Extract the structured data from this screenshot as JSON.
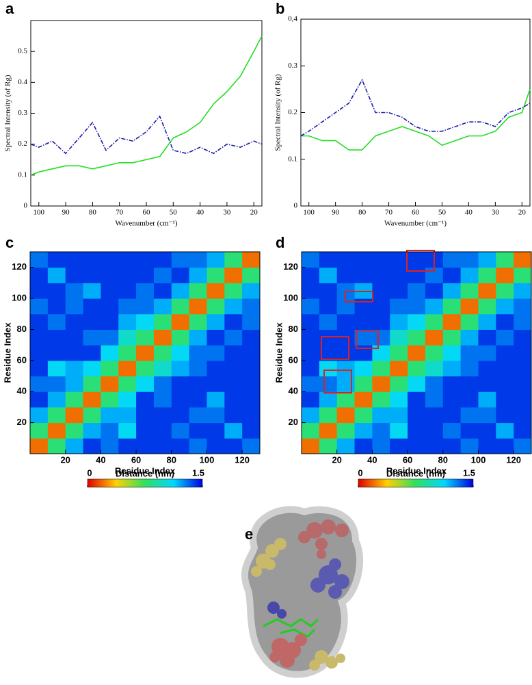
{
  "chart_data": [
    {
      "type": "line",
      "panel": "a",
      "xlabel": "Wavenumber (cm⁻¹)",
      "ylabel": "Spectral Intensity (of Rg)",
      "x": [
        103,
        100,
        95,
        90,
        85,
        80,
        75,
        70,
        65,
        60,
        55,
        50,
        45,
        40,
        35,
        30,
        25,
        20,
        17
      ],
      "xlim": [
        103,
        17
      ],
      "xticks": [
        100,
        90,
        80,
        70,
        60,
        50,
        40,
        30,
        20
      ],
      "ylim": [
        0,
        0.6
      ],
      "yticks": [
        0,
        0.1,
        0.2,
        0.3,
        0.4,
        0.5
      ],
      "series": [
        {
          "color": "#22dd22",
          "style": "solid",
          "values": [
            0.1,
            0.11,
            0.12,
            0.13,
            0.13,
            0.12,
            0.13,
            0.14,
            0.14,
            0.15,
            0.16,
            0.22,
            0.24,
            0.27,
            0.33,
            0.37,
            0.42,
            0.5,
            0.55
          ]
        },
        {
          "color": "#1a1aa8",
          "style": "dash-dot",
          "values": [
            0.2,
            0.19,
            0.21,
            0.17,
            0.22,
            0.27,
            0.18,
            0.22,
            0.21,
            0.24,
            0.29,
            0.18,
            0.17,
            0.19,
            0.17,
            0.2,
            0.19,
            0.21,
            0.2
          ]
        }
      ]
    },
    {
      "type": "line",
      "panel": "b",
      "xlabel": "Wavenumber (cm⁻¹)",
      "ylabel": "Spectral Intensity (of Rg)",
      "x": [
        103,
        100,
        95,
        90,
        85,
        80,
        75,
        70,
        65,
        60,
        55,
        50,
        45,
        40,
        35,
        30,
        25,
        20,
        17
      ],
      "xlim": [
        103,
        17
      ],
      "xticks": [
        100,
        90,
        80,
        70,
        60,
        50,
        40,
        30,
        20
      ],
      "ylim": [
        0,
        0.4
      ],
      "yticks": [
        0,
        0.1,
        0.2,
        0.3,
        {
          "value": 0.4,
          "label": "0,4"
        }
      ],
      "series": [
        {
          "color": "#22dd22",
          "style": "solid",
          "values": [
            0.15,
            0.15,
            0.14,
            0.14,
            0.12,
            0.12,
            0.15,
            0.16,
            0.17,
            0.16,
            0.15,
            0.13,
            0.14,
            0.15,
            0.15,
            0.16,
            0.19,
            0.2,
            0.25
          ]
        },
        {
          "color": "#1a1aa8",
          "style": "dash-dot",
          "values": [
            0.15,
            0.16,
            0.18,
            0.2,
            0.22,
            0.27,
            0.2,
            0.2,
            0.19,
            0.17,
            0.16,
            0.16,
            0.17,
            0.18,
            0.18,
            0.17,
            0.2,
            0.21,
            0.22
          ]
        }
      ]
    },
    {
      "type": "heatmap",
      "panel": "c",
      "xlabel": "Residue Index",
      "ylabel": "Residue Index",
      "x": [
        5,
        15,
        25,
        35,
        45,
        55,
        65,
        75,
        85,
        95,
        105,
        115,
        125
      ],
      "y": [
        5,
        15,
        25,
        35,
        45,
        55,
        65,
        75,
        85,
        95,
        105,
        115,
        125
      ],
      "xlim": [
        0,
        130
      ],
      "xticks": [
        20,
        40,
        60,
        80,
        100,
        120
      ],
      "ylim": [
        0,
        130
      ],
      "yticks": [
        20,
        40,
        60,
        80,
        100,
        120
      ],
      "zlim": [
        0,
        1.5
      ],
      "colorbar": {
        "label": "Distance (nm)",
        "ticks": [
          0,
          1.5
        ]
      },
      "z": [
        [
          0.2,
          0.8,
          1.2,
          1.4,
          1.3,
          1.4,
          1.4,
          1.4,
          1.4,
          1.3,
          1.4,
          1.4,
          1.3
        ],
        [
          0.8,
          0.2,
          0.8,
          1.2,
          1.3,
          1.1,
          1.4,
          1.4,
          1.3,
          1.4,
          1.4,
          1.2,
          1.4
        ],
        [
          1.2,
          0.8,
          0.2,
          0.8,
          1.2,
          1.2,
          1.4,
          1.4,
          1.4,
          1.3,
          1.3,
          1.4,
          1.4
        ],
        [
          1.4,
          1.2,
          0.8,
          0.2,
          0.8,
          1.1,
          1.4,
          1.3,
          1.4,
          1.4,
          1.2,
          1.4,
          1.4
        ],
        [
          1.3,
          1.3,
          1.2,
          0.8,
          0.2,
          0.8,
          1.1,
          1.3,
          1.4,
          1.4,
          1.4,
          1.4,
          1.4
        ],
        [
          1.4,
          1.1,
          1.2,
          1.1,
          0.8,
          0.2,
          0.8,
          1.0,
          1.2,
          1.3,
          1.4,
          1.4,
          1.4
        ],
        [
          1.4,
          1.4,
          1.4,
          1.4,
          1.1,
          0.8,
          0.2,
          0.8,
          1.1,
          1.3,
          1.3,
          1.4,
          1.4
        ],
        [
          1.4,
          1.4,
          1.4,
          1.3,
          1.3,
          1.0,
          0.8,
          0.2,
          0.8,
          1.2,
          1.4,
          1.3,
          1.4
        ],
        [
          1.4,
          1.3,
          1.4,
          1.4,
          1.4,
          1.2,
          1.1,
          0.8,
          0.2,
          0.8,
          1.2,
          1.4,
          1.3
        ],
        [
          1.3,
          1.4,
          1.3,
          1.4,
          1.4,
          1.3,
          1.3,
          1.2,
          0.8,
          0.2,
          0.8,
          1.2,
          1.3
        ],
        [
          1.4,
          1.4,
          1.3,
          1.2,
          1.4,
          1.4,
          1.3,
          1.4,
          1.2,
          0.8,
          0.2,
          0.8,
          1.2
        ],
        [
          1.4,
          1.2,
          1.4,
          1.4,
          1.4,
          1.4,
          1.4,
          1.3,
          1.4,
          1.2,
          0.8,
          0.2,
          0.8
        ],
        [
          1.3,
          1.4,
          1.4,
          1.4,
          1.4,
          1.4,
          1.4,
          1.4,
          1.3,
          1.3,
          1.2,
          0.8,
          0.2
        ]
      ]
    },
    {
      "type": "heatmap",
      "panel": "d",
      "xlabel": "Residue Index",
      "ylabel": "Residue Index",
      "x": [
        5,
        15,
        25,
        35,
        45,
        55,
        65,
        75,
        85,
        95,
        105,
        115,
        125
      ],
      "y": [
        5,
        15,
        25,
        35,
        45,
        55,
        65,
        75,
        85,
        95,
        105,
        115,
        125
      ],
      "xlim": [
        0,
        130
      ],
      "xticks": [
        20,
        40,
        60,
        80,
        100,
        120
      ],
      "ylim": [
        0,
        130
      ],
      "yticks": [
        20,
        40,
        60,
        80,
        100,
        120
      ],
      "zlim": [
        0,
        1.5
      ],
      "colorbar": {
        "label": "Distance (nm)",
        "ticks": [
          0,
          1.5
        ]
      },
      "z": [
        [
          0.2,
          0.8,
          1.2,
          1.4,
          1.3,
          1.4,
          1.4,
          1.4,
          1.4,
          1.3,
          1.4,
          1.4,
          1.3
        ],
        [
          0.8,
          0.2,
          0.8,
          1.2,
          1.3,
          1.1,
          1.4,
          1.4,
          1.3,
          1.4,
          1.4,
          1.2,
          1.4
        ],
        [
          1.2,
          0.8,
          0.2,
          0.8,
          1.2,
          1.2,
          1.4,
          1.4,
          1.4,
          1.3,
          1.3,
          1.4,
          1.4
        ],
        [
          1.4,
          1.2,
          0.8,
          0.2,
          0.8,
          1.1,
          1.4,
          1.3,
          1.4,
          1.4,
          1.2,
          1.4,
          1.4
        ],
        [
          1.3,
          1.3,
          1.2,
          0.8,
          0.2,
          0.8,
          1.1,
          1.3,
          1.4,
          1.4,
          1.4,
          1.4,
          1.4
        ],
        [
          1.4,
          1.1,
          1.2,
          1.1,
          0.8,
          0.2,
          0.8,
          1.0,
          1.2,
          1.3,
          1.4,
          1.4,
          1.4
        ],
        [
          1.4,
          1.4,
          1.4,
          1.4,
          1.1,
          0.8,
          0.2,
          0.8,
          1.1,
          1.3,
          1.3,
          1.4,
          1.4
        ],
        [
          1.4,
          1.4,
          1.4,
          1.3,
          1.3,
          1.0,
          0.8,
          0.2,
          0.8,
          1.2,
          1.4,
          1.3,
          1.4
        ],
        [
          1.4,
          1.3,
          1.4,
          1.4,
          1.4,
          1.2,
          1.1,
          0.8,
          0.2,
          0.8,
          1.2,
          1.4,
          1.3
        ],
        [
          1.3,
          1.4,
          1.3,
          1.4,
          1.4,
          1.3,
          1.3,
          1.2,
          0.8,
          0.2,
          0.8,
          1.2,
          1.3
        ],
        [
          1.4,
          1.4,
          1.3,
          1.2,
          1.4,
          1.4,
          1.3,
          1.4,
          1.2,
          0.8,
          0.2,
          0.8,
          1.2
        ],
        [
          1.4,
          1.2,
          1.4,
          1.4,
          1.4,
          1.4,
          1.4,
          1.3,
          1.4,
          1.2,
          0.8,
          0.2,
          0.8
        ],
        [
          1.3,
          1.4,
          1.4,
          1.4,
          1.4,
          1.4,
          1.4,
          1.4,
          1.3,
          1.3,
          1.2,
          0.8,
          0.2
        ]
      ]
    },
    {
      "type": "image",
      "panel": "e"
    }
  ]
}
